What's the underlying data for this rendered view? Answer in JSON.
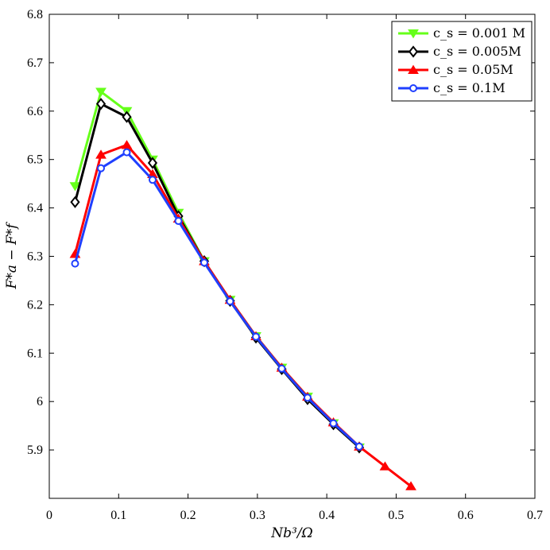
{
  "chart_data": {
    "type": "line",
    "xlabel": "Nb³/Ω",
    "ylabel": "F*a − F*f",
    "xlim": [
      0,
      0.7
    ],
    "ylim": [
      5.8,
      6.8
    ],
    "xticks": [
      "0",
      "0.1",
      "0.2",
      "0.3",
      "0.4",
      "0.5",
      "0.6",
      "0.7"
    ],
    "yticks": [
      "5.9",
      "6",
      "6.1",
      "6.2",
      "6.3",
      "6.4",
      "6.5",
      "6.6",
      "6.7",
      "6.8"
    ],
    "grid": false,
    "legend_position": "top-right",
    "series": [
      {
        "name": "c_s = 0.001 M",
        "color": "#66ff1a",
        "marker": "triangle-down",
        "x": [
          0.0372,
          0.0745,
          0.1117,
          0.1489,
          0.1862,
          0.2234,
          0.2606,
          0.2979,
          0.3351,
          0.3723,
          0.4096,
          0.4468
        ],
        "y": [
          6.445,
          6.64,
          6.6,
          6.5,
          6.39,
          6.29,
          6.21,
          6.135,
          6.07,
          6.01,
          5.955,
          5.905
        ]
      },
      {
        "name": "c_s = 0.005M",
        "color": "#000000",
        "marker": "diamond",
        "x": [
          0.0372,
          0.0745,
          0.1117,
          0.1489,
          0.1862,
          0.2234,
          0.2606,
          0.2979,
          0.3351,
          0.3723,
          0.4096,
          0.4468
        ],
        "y": [
          6.412,
          6.615,
          6.588,
          6.493,
          6.383,
          6.29,
          6.208,
          6.132,
          6.067,
          6.005,
          5.953,
          5.905
        ]
      },
      {
        "name": "c_s = 0.05M",
        "color": "#ff0000",
        "marker": "triangle-up",
        "x": [
          0.0372,
          0.0745,
          0.1117,
          0.1489,
          0.1862,
          0.2234,
          0.2606,
          0.2979,
          0.3351,
          0.3723,
          0.4096,
          0.4468,
          0.484,
          0.5213
        ],
        "y": [
          6.305,
          6.51,
          6.53,
          6.47,
          6.378,
          6.29,
          6.21,
          6.135,
          6.07,
          6.01,
          5.957,
          5.907,
          5.866,
          5.825
        ]
      },
      {
        "name": "c_s = 0.1M",
        "color": "#1f3fff",
        "marker": "circle",
        "x": [
          0.0372,
          0.0745,
          0.1117,
          0.1489,
          0.1862,
          0.2234,
          0.2606,
          0.2979,
          0.3351,
          0.3723,
          0.4096,
          0.4468
        ],
        "y": [
          6.285,
          6.482,
          6.515,
          6.458,
          6.373,
          6.287,
          6.207,
          6.134,
          6.068,
          6.008,
          5.955,
          5.907
        ]
      }
    ]
  }
}
